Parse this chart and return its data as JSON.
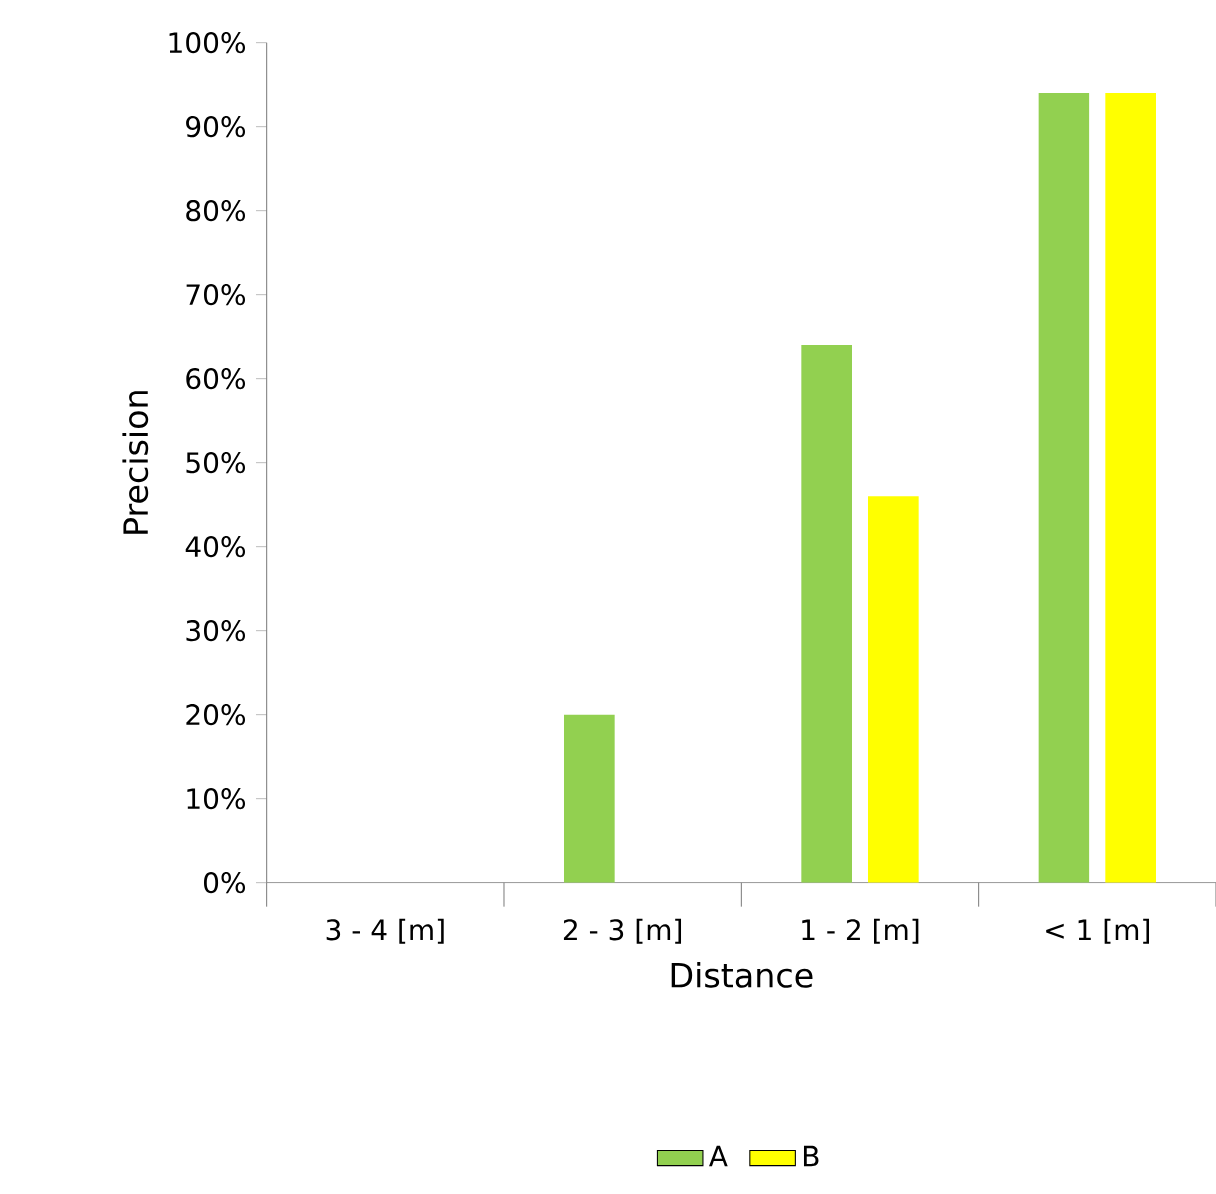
{
  "chart_data": {
    "type": "bar",
    "xlabel": "Distance",
    "ylabel": "Precision",
    "categories": [
      "3 - 4 [m]",
      "2 - 3 [m]",
      "1 - 2 [m]",
      "< 1 [m]"
    ],
    "series": [
      {
        "name": "A",
        "color": "#92d050",
        "values": [
          0,
          20,
          64,
          94
        ]
      },
      {
        "name": "B",
        "color": "#ffff00",
        "values": [
          0,
          0,
          46,
          94
        ]
      }
    ],
    "ylim": [
      0,
      100
    ],
    "yticks": [
      {
        "value": 0,
        "label": "0%"
      },
      {
        "value": 10,
        "label": "10%"
      },
      {
        "value": 20,
        "label": "20%"
      },
      {
        "value": 30,
        "label": "30%"
      },
      {
        "value": 40,
        "label": "40%"
      },
      {
        "value": 50,
        "label": "50%"
      },
      {
        "value": 60,
        "label": "60%"
      },
      {
        "value": 70,
        "label": "70%"
      },
      {
        "value": 80,
        "label": "80%"
      },
      {
        "value": 90,
        "label": "90%"
      },
      {
        "value": 100,
        "label": "100%"
      }
    ],
    "grid": false,
    "legend": "bottom"
  }
}
